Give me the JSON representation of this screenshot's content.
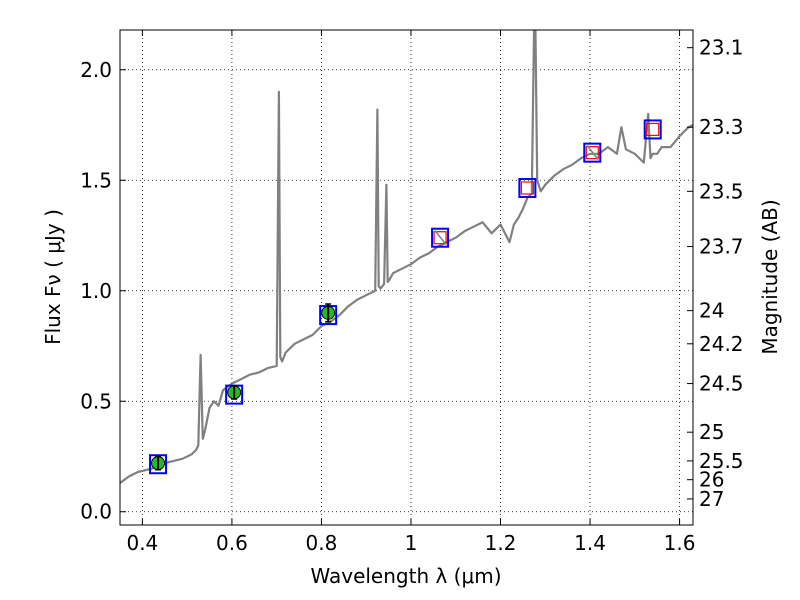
{
  "chart_data": {
    "type": "line",
    "xlabel": "Wavelength  λ (μm)",
    "ylabel": "Flux  Fν  ( μJy )",
    "y2label": "Magnitude (AB)",
    "xlim": [
      0.35,
      1.63
    ],
    "ylim": [
      -0.06,
      2.18
    ],
    "xticks": [
      0.4,
      0.6,
      0.8,
      1.0,
      1.2,
      1.4,
      1.6
    ],
    "xtick_labels": [
      "0.4",
      "0.6",
      "0.8",
      "1",
      "1.2",
      "1.4",
      "1.6"
    ],
    "yticks": [
      0.0,
      0.5,
      1.0,
      1.5,
      2.0
    ],
    "ytick_labels": [
      "0.0",
      "0.5",
      "1.0",
      "1.5",
      "2.0"
    ],
    "y2ticks": [
      {
        "label": "23.1",
        "flux": 2.1
      },
      {
        "label": "23.3",
        "flux": 1.74
      },
      {
        "label": "23.5",
        "flux": 1.45
      },
      {
        "label": "23.7",
        "flux": 1.2
      },
      {
        "label": "24",
        "flux": 0.91
      },
      {
        "label": "24.2",
        "flux": 0.76
      },
      {
        "label": "24.5",
        "flux": 0.58
      },
      {
        "label": "25",
        "flux": 0.36
      },
      {
        "label": "25.5",
        "flux": 0.23
      },
      {
        "label": "26",
        "flux": 0.145
      },
      {
        "label": "27",
        "flux": 0.058
      }
    ],
    "colors": {
      "model": "#808080",
      "box": "#0000ff",
      "model_phot": "#ff0000",
      "detection": "#22bb22"
    },
    "series": [
      {
        "name": "model spectrum",
        "x": [
          0.35,
          0.37,
          0.39,
          0.41,
          0.43,
          0.45,
          0.47,
          0.49,
          0.51,
          0.52,
          0.525,
          0.53,
          0.535,
          0.54,
          0.55,
          0.56,
          0.57,
          0.58,
          0.6,
          0.62,
          0.64,
          0.66,
          0.68,
          0.7,
          0.705,
          0.708,
          0.712,
          0.72,
          0.74,
          0.76,
          0.78,
          0.8,
          0.82,
          0.84,
          0.86,
          0.88,
          0.9,
          0.92,
          0.925,
          0.928,
          0.932,
          0.94,
          0.945,
          0.948,
          0.952,
          0.96,
          0.98,
          1.0,
          1.02,
          1.04,
          1.06,
          1.08,
          1.1,
          1.12,
          1.14,
          1.16,
          1.18,
          1.2,
          1.22,
          1.23,
          1.24,
          1.25,
          1.26,
          1.27,
          1.275,
          1.278,
          1.282,
          1.29,
          1.3,
          1.32,
          1.34,
          1.36,
          1.38,
          1.4,
          1.42,
          1.44,
          1.46,
          1.47,
          1.48,
          1.5,
          1.52,
          1.53,
          1.535,
          1.54,
          1.55,
          1.56,
          1.58,
          1.6,
          1.62,
          1.63
        ],
        "y": [
          0.13,
          0.16,
          0.18,
          0.19,
          0.2,
          0.22,
          0.23,
          0.24,
          0.26,
          0.28,
          0.3,
          0.71,
          0.33,
          0.37,
          0.47,
          0.5,
          0.48,
          0.55,
          0.58,
          0.6,
          0.62,
          0.63,
          0.65,
          0.66,
          1.9,
          0.7,
          0.68,
          0.72,
          0.76,
          0.78,
          0.8,
          0.84,
          0.86,
          0.89,
          0.93,
          0.96,
          0.98,
          1.0,
          1.82,
          1.02,
          1.01,
          1.03,
          1.48,
          1.04,
          1.05,
          1.08,
          1.1,
          1.12,
          1.15,
          1.17,
          1.2,
          1.22,
          1.24,
          1.27,
          1.29,
          1.31,
          1.26,
          1.3,
          1.22,
          1.3,
          1.33,
          1.37,
          1.42,
          1.44,
          2.2,
          2.2,
          1.5,
          1.45,
          1.48,
          1.52,
          1.55,
          1.57,
          1.6,
          1.62,
          1.62,
          1.65,
          1.62,
          1.74,
          1.64,
          1.62,
          1.58,
          1.8,
          1.6,
          1.62,
          1.62,
          1.65,
          1.65,
          1.7,
          1.74,
          1.75
        ]
      },
      {
        "name": "photometry boxes",
        "x": [
          0.435,
          0.605,
          0.815,
          1.065,
          1.26,
          1.405,
          1.54
        ],
        "y": [
          0.215,
          0.53,
          0.89,
          1.24,
          1.465,
          1.625,
          1.73
        ]
      },
      {
        "name": "observed points",
        "x": [
          0.435,
          0.605,
          0.815
        ],
        "y": [
          0.22,
          0.54,
          0.9
        ],
        "yerr": [
          0.03,
          0.03,
          0.04
        ]
      }
    ]
  }
}
